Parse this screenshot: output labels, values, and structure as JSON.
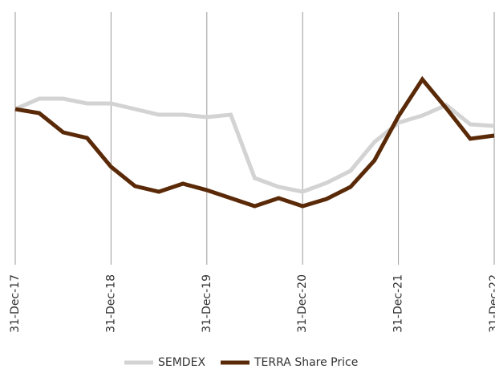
{
  "chart_data": {
    "type": "line",
    "categories": [
      "31-Dec-17",
      null,
      null,
      null,
      "31-Dec-18",
      null,
      null,
      null,
      "31-Dec-19",
      null,
      null,
      null,
      "31-Dec-20",
      null,
      null,
      null,
      "31-Dec-21",
      null,
      null,
      null,
      "31-Dec-22"
    ],
    "series": [
      {
        "name": "SEMDEX",
        "color": "#d3d3d3",
        "values": [
          100,
          106.5,
          106.5,
          103.5,
          103.5,
          100,
          96.5,
          96.5,
          95,
          96.5,
          57,
          51.5,
          48.5,
          54,
          61.5,
          79.5,
          91.5,
          96,
          102.5,
          90.5,
          89.5
        ]
      },
      {
        "name": "TERRA Share Price",
        "color": "#5a2a08",
        "values": [
          100,
          97.5,
          85.5,
          82,
          64,
          52,
          48.5,
          53.5,
          49.5,
          44.5,
          39.5,
          44.5,
          39.5,
          44,
          51.5,
          68,
          95.5,
          118.5,
          100.5,
          81.5,
          83.5
        ]
      }
    ],
    "ylim": [
      3,
      160.5
    ],
    "grid": true,
    "legend": "bottom"
  }
}
